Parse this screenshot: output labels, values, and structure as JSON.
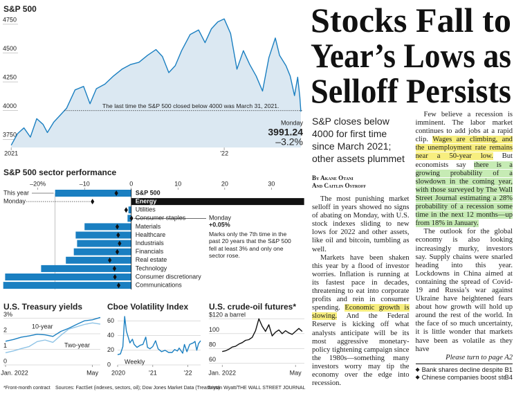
{
  "chart_data": [
    {
      "type": "line",
      "title": "S&P 500",
      "color": "#1a7fc1",
      "area_color": "#dbe8f2",
      "x": [
        2021.0,
        2021.03,
        2021.06,
        2021.09,
        2021.12,
        2021.15,
        2021.17,
        2021.2,
        2021.23,
        2021.26,
        2021.3,
        2021.34,
        2021.37,
        2021.4,
        2021.44,
        2021.48,
        2021.52,
        2021.56,
        2021.6,
        2021.64,
        2021.68,
        2021.71,
        2021.74,
        2021.77,
        2021.8,
        2021.84,
        2021.88,
        2021.91,
        2021.94,
        2021.97,
        2022.0,
        2022.03,
        2022.06,
        2022.09,
        2022.12,
        2022.15,
        2022.18,
        2022.21,
        2022.24,
        2022.26,
        2022.29,
        2022.31,
        2022.33,
        2022.345,
        2022.355,
        2022.36
      ],
      "values": [
        3700,
        3800,
        3850,
        3770,
        3930,
        3880,
        3810,
        3900,
        3960,
        4020,
        4180,
        4210,
        4060,
        4190,
        4230,
        4300,
        4360,
        4400,
        4420,
        4480,
        4530,
        4470,
        4330,
        4390,
        4520,
        4660,
        4700,
        4590,
        4710,
        4770,
        4796,
        4670,
        4360,
        4520,
        4400,
        4300,
        4170,
        4460,
        4630,
        4480,
        4390,
        4300,
        4130,
        4290,
        4120,
        3991.24
      ],
      "xlim": [
        2020.98,
        2022.37
      ],
      "xticks": [
        2021,
        {
          "value": 2022,
          "label": "’22"
        }
      ],
      "ylim": [
        3680,
        4840
      ],
      "yticks": [
        3750,
        4000,
        4250,
        4500,
        4750
      ],
      "reference": {
        "value": 4000,
        "x": 2021.25,
        "label": "The last time the S&P 500 closed below 4000 was March 31, 2021."
      },
      "last_label": "Monday",
      "change_label": "–3.2%"
    },
    {
      "type": "hbar",
      "title": "S&P 500 sector performance",
      "categories": [
        "S&P 500",
        "Energy",
        "Utilities",
        "Consumer staples",
        "Materials",
        "Healthcare",
        "Industrials",
        "Financials",
        "Real estate",
        "Technology",
        "Consumer discretionary",
        "Communications"
      ],
      "series": [
        {
          "name": "This year",
          "values": [
            -16.3,
            37,
            -0.6,
            -0.8,
            -10,
            -11.9,
            -11.6,
            -12.3,
            -14,
            -19.3,
            -27,
            -27.4
          ],
          "colors": [
            "#1a7fc1",
            "#111111",
            "#1a7fc1",
            "#1a7fc1",
            "#1a7fc1",
            "#1a7fc1",
            "#1a7fc1",
            "#1a7fc1",
            "#1a7fc1",
            "#1a7fc1",
            "#1a7fc1",
            "#1a7fc1"
          ]
        },
        {
          "name": "Monday",
          "values": [
            -3.2,
            -8.3,
            -1.1,
            0.05,
            -3,
            -2.8,
            -2.5,
            -3,
            -4.6,
            -3.6,
            -3.5,
            -2.7
          ],
          "color": "#111111"
        }
      ],
      "xlim": [
        -27.8,
        37.2
      ],
      "xticks": [
        {
          "value": -20,
          "label": "–20%"
        },
        {
          "value": -10,
          "label": "–10"
        },
        0,
        10,
        20,
        30
      ],
      "annotation": {
        "label": "Monday",
        "value_label": "+0.05%",
        "note": "Marks only the 7th time in the past 20 years that the S&P 500 fell at least 3% and only one sector rose."
      }
    },
    {
      "type": "line",
      "title": "U.S. Treasury yields",
      "grid": true,
      "x": [
        2022.0,
        2022.03,
        2022.06,
        2022.09,
        2022.12,
        2022.15,
        2022.18,
        2022.21,
        2022.24,
        2022.27,
        2022.3,
        2022.33,
        2022.36
      ],
      "series": [
        {
          "name": "10-year",
          "color": "#1a7fc1",
          "values": [
            1.52,
            1.63,
            1.78,
            1.86,
            1.97,
            1.93,
            1.83,
            2.15,
            2.35,
            2.6,
            2.83,
            2.9,
            3.05
          ]
        },
        {
          "name": "Two-year",
          "color": "#8ec3e6",
          "values": [
            0.78,
            0.9,
            1.05,
            1.18,
            1.5,
            1.6,
            1.45,
            1.9,
            2.3,
            2.45,
            2.6,
            2.7,
            2.62
          ]
        }
      ],
      "xlim": [
        2022.0,
        2022.36
      ],
      "xticks": [
        {
          "value": 2022.0,
          "label": "Jan. 2022"
        },
        {
          "value": 2022.33,
          "label": "May"
        }
      ],
      "ylim": [
        0,
        3.2
      ],
      "yticks": [
        {
          "value": 3,
          "label": "3%"
        },
        2,
        1,
        0
      ]
    },
    {
      "type": "line",
      "title": "Cboe Volatility Index",
      "grid": true,
      "color": "#1a7fc1",
      "note": "Weekly",
      "x": [
        2020.0,
        2020.08,
        2020.15,
        2020.2,
        2020.25,
        2020.3,
        2020.35,
        2020.42,
        2020.47,
        2020.55,
        2020.65,
        2020.72,
        2020.8,
        2020.85,
        2020.92,
        2021.0,
        2021.08,
        2021.15,
        2021.25,
        2021.35,
        2021.45,
        2021.55,
        2021.62,
        2021.7,
        2021.75,
        2021.85,
        2021.9,
        2021.97,
        2022.05,
        2022.15,
        2022.2,
        2022.25,
        2022.3,
        2022.36
      ],
      "values": [
        14,
        15,
        25,
        66,
        46,
        38,
        30,
        35,
        28,
        24,
        27,
        28,
        38,
        24,
        22,
        25,
        33,
        22,
        18,
        20,
        17,
        17,
        21,
        19,
        23,
        16,
        28,
        18,
        28,
        30,
        32,
        20,
        29,
        33
      ],
      "xlim": [
        2020.0,
        2022.36
      ],
      "xticks": [
        2020,
        {
          "value": 2021,
          "label": "’21"
        },
        {
          "value": 2022,
          "label": "’22"
        }
      ],
      "ylim": [
        0,
        68
      ],
      "yticks": [
        60,
        40,
        20,
        0
      ]
    },
    {
      "type": "line",
      "title": "U.S. crude-oil futures*",
      "grid": true,
      "color": "#111111",
      "x": [
        2022.0,
        2022.015,
        2022.03,
        2022.045,
        2022.06,
        2022.075,
        2022.09,
        2022.105,
        2022.12,
        2022.135,
        2022.15,
        2022.165,
        2022.18,
        2022.195,
        2022.21,
        2022.225,
        2022.24,
        2022.255,
        2022.27,
        2022.285,
        2022.3,
        2022.315,
        2022.33,
        2022.345,
        2022.36
      ],
      "values": [
        76,
        77,
        79,
        82,
        83,
        86,
        88,
        91,
        92,
        95,
        104,
        120,
        110,
        103,
        112,
        97,
        102,
        105,
        100,
        104,
        101,
        99,
        103,
        107,
        103
      ],
      "xlim": [
        2021.99,
        2022.37
      ],
      "xticks": [
        {
          "value": 2022.0,
          "label": "Jan. 2022"
        },
        {
          "value": 2022.33,
          "label": "May"
        }
      ],
      "ylim": [
        58,
        125
      ],
      "yticks": [
        {
          "value": 120,
          "label": "$120 a barrel"
        },
        100,
        80,
        60
      ]
    }
  ],
  "footnote": "*Front-month contract",
  "sources": "Sources: FactSet (indexes, sectors, oil); Dow Jones Market Data (Treasurys)",
  "credit": "Tristan Wyatt/THE WALL STREET JOURNAL",
  "headline": [
    "Stocks Fall to",
    "Year’s Lows as",
    "Selloff Persists"
  ],
  "deck": "S&P closes below 4000 for first time since March 2021; other assets plummet",
  "byline": [
    "By Akane Otani",
    "And Caitlin Ostroff"
  ],
  "paragraphs": [
    [
      {
        "text": "The most punishing market selloff in years showed no signs of abating on Monday, with U.S. stock indexes sliding to new lows for 2022 and other assets, like oil and bitcoin, tumbling as well."
      }
    ],
    [
      {
        "text": "Markets have been shaken this year by a flood of investor worries. Inflation is running at its fastest pace in decades, threatening to eat into corporate profits and rein in consumer spending. "
      },
      {
        "text": "Economic growth is slowing.",
        "highlight": "#f7ee7f"
      },
      {
        "text": " And the Federal Reserve is kicking off what analysts anticipate will be its most aggressive monetary-policy tightening campaign since the 1980s—something many investors worry may tip the economy over the edge into recession."
      }
    ],
    [
      {
        "text": "Few believe a recession is imminent. The labor market continues to add jobs at a rapid clip. "
      },
      {
        "text": "Wages are climbing, and the unemployment rate remains near a 50-year low.",
        "highlight": "#f7ee7f"
      },
      {
        "text": " But economists say "
      },
      {
        "text": "there is a growing probability of a slowdown in the coming year, with those surveyed by The Wall Street Journal estimating a 28% probability of a recession some time in the next 12 months—up from 18% in January.",
        "highlight": "#c6ebb4"
      }
    ],
    [
      {
        "text": "The outlook for the global economy is also looking increasingly murky, investors say. Supply chains were snarled heading into this year. Lockdowns in China aimed at containing the spread of Covid-19 and Russia’s war against Ukraine have heightened fears about how growth will hold up around the rest of the world. In the face of so much uncertainty, it is little wonder that markets have been as volatile as they have"
      }
    ]
  ],
  "jump": "Please turn to page A2",
  "briefs": [
    {
      "text": "Bank shares decline despite Fed moves to raise rates....",
      "page": "B1"
    },
    {
      "text": "Chinese companies boost stock payouts.........................",
      "page": "B4"
    }
  ]
}
